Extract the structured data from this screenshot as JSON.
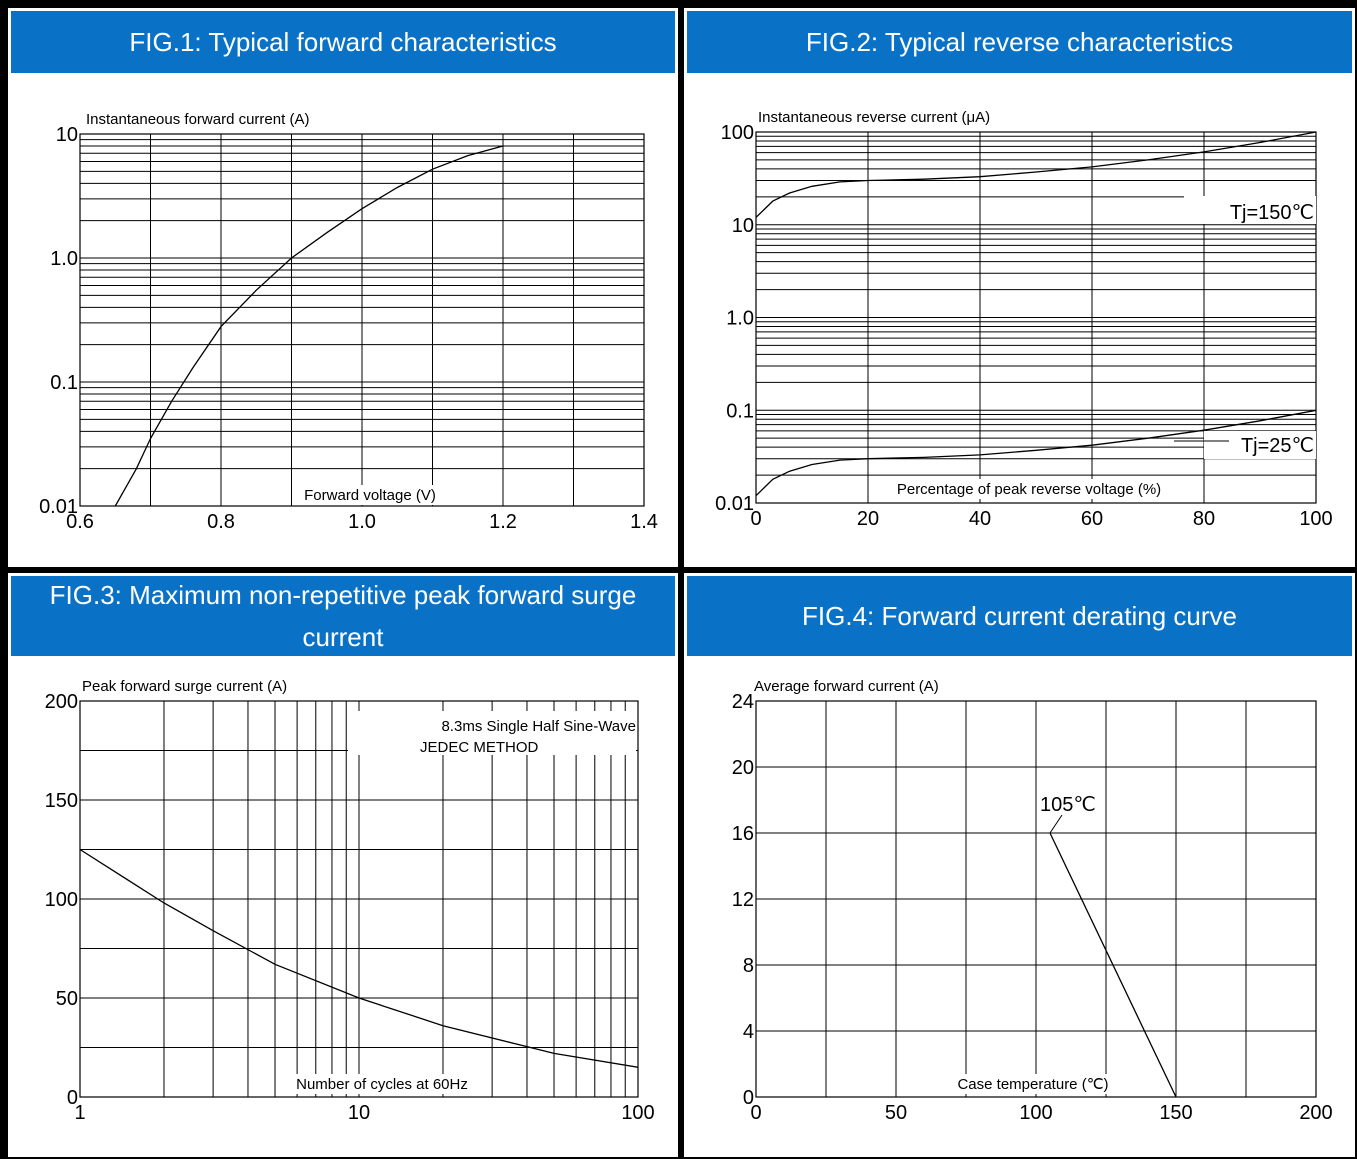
{
  "panels": [
    {
      "header": "FIG.1: Typical forward characteristics",
      "chart_data": {
        "type": "line",
        "title": "FIG.1: Typical forward characteristics",
        "xlabel": "Forward voltage (V)",
        "ylabel": "Instantaneous forward current (A)",
        "xscale": "linear",
        "yscale": "log",
        "xlim": [
          0.6,
          1.4
        ],
        "ylim": [
          0.01,
          10
        ],
        "x_ticks": [
          0.6,
          0.8,
          1.0,
          1.2,
          1.4
        ],
        "x_tick_labels": [
          "0.6",
          "0.8",
          "1.0",
          "1.2",
          "1.4"
        ],
        "y_ticks": [
          0.01,
          0.1,
          1,
          10
        ],
        "y_tick_labels": [
          "0.01",
          "0.1",
          "1.0",
          "10"
        ],
        "x_grid": [
          0.7,
          0.8,
          0.9,
          1.0,
          1.1,
          1.2,
          1.3
        ],
        "grid": true,
        "series": [
          {
            "x": [
              0.65,
              0.68,
              0.7,
              0.73,
              0.76,
              0.8,
              0.85,
              0.9,
              0.95,
              1.0,
              1.05,
              1.1,
              1.15,
              1.2
            ],
            "y": [
              0.01,
              0.02,
              0.035,
              0.07,
              0.13,
              0.28,
              0.55,
              1.0,
              1.6,
              2.5,
              3.7,
              5.2,
              6.7,
              8.0
            ]
          }
        ],
        "annotations": []
      }
    },
    {
      "header": "FIG.2: Typical reverse characteristics",
      "chart_data": {
        "type": "line",
        "title": "FIG.2: Typical reverse characteristics",
        "xlabel": "Percentage of peak reverse voltage (%)",
        "ylabel": "Instantaneous reverse current (μA)",
        "xscale": "linear",
        "yscale": "log",
        "xlim": [
          0,
          100
        ],
        "ylim": [
          0.01,
          100
        ],
        "x_ticks": [
          0,
          20,
          40,
          60,
          80,
          100
        ],
        "x_tick_labels": [
          "0",
          "20",
          "40",
          "60",
          "80",
          "100"
        ],
        "y_ticks": [
          0.01,
          0.1,
          1,
          10,
          100
        ],
        "y_tick_labels": [
          "0.01",
          "0.1",
          "1.0",
          "10",
          "100"
        ],
        "x_grid": [
          20,
          40,
          60,
          80
        ],
        "grid": true,
        "series": [
          {
            "name": "Tj=150℃",
            "x": [
              0,
              3,
              6,
              10,
              15,
              20,
              30,
              40,
              50,
              60,
              70,
              80,
              90,
              100
            ],
            "y": [
              12,
              18,
              22,
              26,
              29,
              30,
              31,
              33,
              37,
              42,
              50,
              61,
              77,
              100
            ]
          },
          {
            "name": "Tj=25℃",
            "x": [
              0,
              3,
              6,
              10,
              15,
              20,
              30,
              40,
              50,
              60,
              70,
              80,
              90,
              100
            ],
            "y": [
              0.012,
              0.018,
              0.022,
              0.026,
              0.029,
              0.03,
              0.031,
              0.033,
              0.037,
              0.042,
              0.05,
              0.061,
              0.077,
              0.1
            ]
          }
        ],
        "annotations": [
          "Tj=150℃",
          "Tj=25℃"
        ]
      }
    },
    {
      "header": "FIG.3: Maximum non-repetitive peak forward surge current",
      "chart_data": {
        "type": "line",
        "title": "FIG.3: Maximum non-repetitive peak forward surge current",
        "xlabel": "Number of cycles at 60Hz",
        "ylabel": "Peak forward surge current (A)",
        "xscale": "log",
        "yscale": "linear",
        "xlim": [
          1,
          100
        ],
        "ylim": [
          0,
          200
        ],
        "x_ticks": [
          1,
          10,
          100
        ],
        "x_tick_labels": [
          "1",
          "10",
          "100"
        ],
        "y_ticks": [
          0,
          50,
          100,
          150,
          200
        ],
        "y_tick_labels": [
          "0",
          "50",
          "100",
          "150",
          "200"
        ],
        "x_grid": [
          2,
          3,
          4,
          5,
          6,
          7,
          8,
          9,
          20,
          30,
          40,
          50,
          60,
          70,
          80,
          90
        ],
        "y_grid": [
          25,
          50,
          75,
          100,
          125,
          150,
          175
        ],
        "grid": true,
        "series": [
          {
            "x": [
              1,
              2,
              3,
              5,
              10,
              20,
              50,
              100
            ],
            "y": [
              125,
              98,
              84,
              67,
              50,
              36,
              22,
              15
            ]
          }
        ],
        "annotations": [
          "8.3ms Single Half Sine-Wave",
          "JEDEC METHOD"
        ]
      }
    },
    {
      "header": "FIG.4: Forward current derating curve",
      "chart_data": {
        "type": "line",
        "title": "FIG.4: Forward current derating curve",
        "xlabel": "Case temperature (℃)",
        "ylabel": "Average forward current (A)",
        "xscale": "linear",
        "yscale": "linear",
        "xlim": [
          0,
          200
        ],
        "ylim": [
          0,
          24
        ],
        "x_ticks": [
          0,
          50,
          100,
          150,
          200
        ],
        "x_tick_labels": [
          "0",
          "50",
          "100",
          "150",
          "200"
        ],
        "y_ticks": [
          0,
          4,
          8,
          12,
          16,
          20,
          24
        ],
        "y_tick_labels": [
          "0",
          "4",
          "8",
          "12",
          "16",
          "20",
          "24"
        ],
        "x_grid": [
          25,
          50,
          75,
          100,
          125,
          150,
          175
        ],
        "y_grid": [
          4,
          8,
          12,
          16,
          20
        ],
        "grid": true,
        "series": [
          {
            "x": [
              105,
              150
            ],
            "y": [
              16,
              0
            ]
          }
        ],
        "annotations": [
          "105℃"
        ]
      }
    }
  ]
}
